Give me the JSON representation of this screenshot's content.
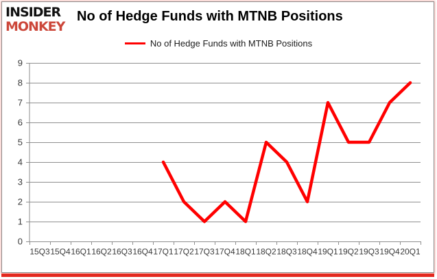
{
  "logo": {
    "line1": "INSIDER",
    "line2": "MONKEY"
  },
  "header": {
    "title": "No of Hedge Funds with MTNB Positions"
  },
  "legend": {
    "label": "No of Hedge Funds with MTNB Positions"
  },
  "colors": {
    "series_red": "#ff0000",
    "brand_red": "#cc4639",
    "logo_black": "#111111",
    "gridline_gray": "#8e8e8e",
    "axis_text": "#3a3a3a",
    "frame_gray": "#8a8a8a",
    "shadow_red": "#e3281e"
  },
  "chart_data": {
    "type": "line",
    "title": "No of Hedge Funds with MTNB Positions",
    "categories": [
      "15Q3",
      "15Q4",
      "16Q1",
      "16Q2",
      "16Q3",
      "16Q4",
      "17Q1",
      "17Q2",
      "17Q3",
      "17Q4",
      "18Q1",
      "18Q2",
      "18Q3",
      "18Q4",
      "19Q1",
      "19Q2",
      "19Q3",
      "19Q4",
      "20Q1"
    ],
    "series": [
      {
        "name": "No of Hedge Funds with MTNB Positions",
        "color": "#ff0000",
        "values": [
          null,
          null,
          null,
          null,
          null,
          null,
          4,
          2,
          1,
          2,
          1,
          5,
          4,
          2,
          7,
          5,
          5,
          7,
          8
        ]
      }
    ],
    "xlabel": "",
    "ylabel": "",
    "ylim": [
      0,
      9
    ],
    "yticks": [
      0,
      1,
      2,
      3,
      4,
      5,
      6,
      7,
      8,
      9
    ],
    "ytick_interval": 1,
    "grid": "horizontal",
    "legend_position": "top-center"
  }
}
